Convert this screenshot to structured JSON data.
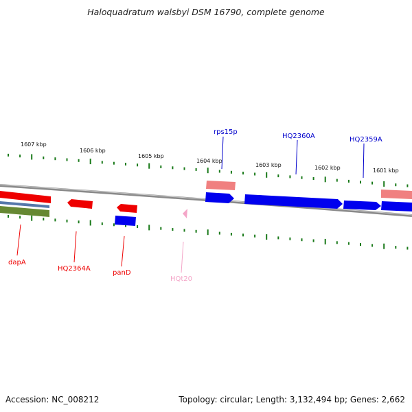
{
  "title": "Haloquadratum walsbyi DSM 16790, complete genome",
  "footer": {
    "accession": "Accession: NC_008212",
    "topology": "Topology: circular; Length: 3,132,494 bp; Genes: 2,662"
  },
  "colors": {
    "forward_gene": "#0000ee",
    "reverse_gene": "#ee0000",
    "trna": "#f4a6c8",
    "rrna_pink": "#f08080",
    "tick": "#1a7a1a",
    "backbone": "#888888"
  },
  "scale_labels": [
    "1607 kbp",
    "1606 kbp",
    "1605 kbp",
    "1604 kbp",
    "1603 kbp",
    "1602 kbp",
    "1601 kbp"
  ],
  "gene_labels": {
    "rps15p": "rps15p",
    "HQ2360A": "HQ2360A",
    "HQ2359A": "HQ2359A",
    "dapA": "dapA",
    "HQ2364A": "HQ2364A",
    "panD": "panD",
    "HQt20": "HQt20"
  }
}
